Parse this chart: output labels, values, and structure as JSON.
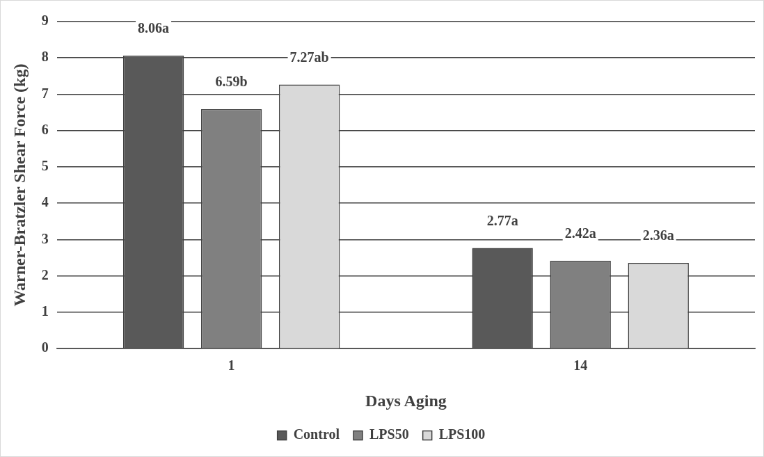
{
  "chart_data": {
    "type": "bar",
    "xlabel": "Days Aging",
    "ylabel": "Warner-Bratzler Shear Force (kg)",
    "categories": [
      "1",
      "14"
    ],
    "series": [
      {
        "name": "Control",
        "color": "#595959",
        "values": [
          8.06,
          2.77
        ],
        "value_labels": [
          "8.06a",
          "2.77a"
        ]
      },
      {
        "name": "LPS50",
        "color": "#808080",
        "values": [
          6.59,
          2.42
        ],
        "value_labels": [
          "6.59b",
          "2.42a"
        ]
      },
      {
        "name": "LPS100",
        "color": "#d9d9d9",
        "values": [
          7.27,
          2.36
        ],
        "value_labels": [
          "7.27ab",
          "2.36a"
        ]
      }
    ],
    "ylim": [
      0,
      9
    ],
    "yticks": [
      0,
      1,
      2,
      3,
      4,
      5,
      6,
      7,
      8,
      9
    ],
    "grid": "y",
    "legend": "bottom"
  }
}
